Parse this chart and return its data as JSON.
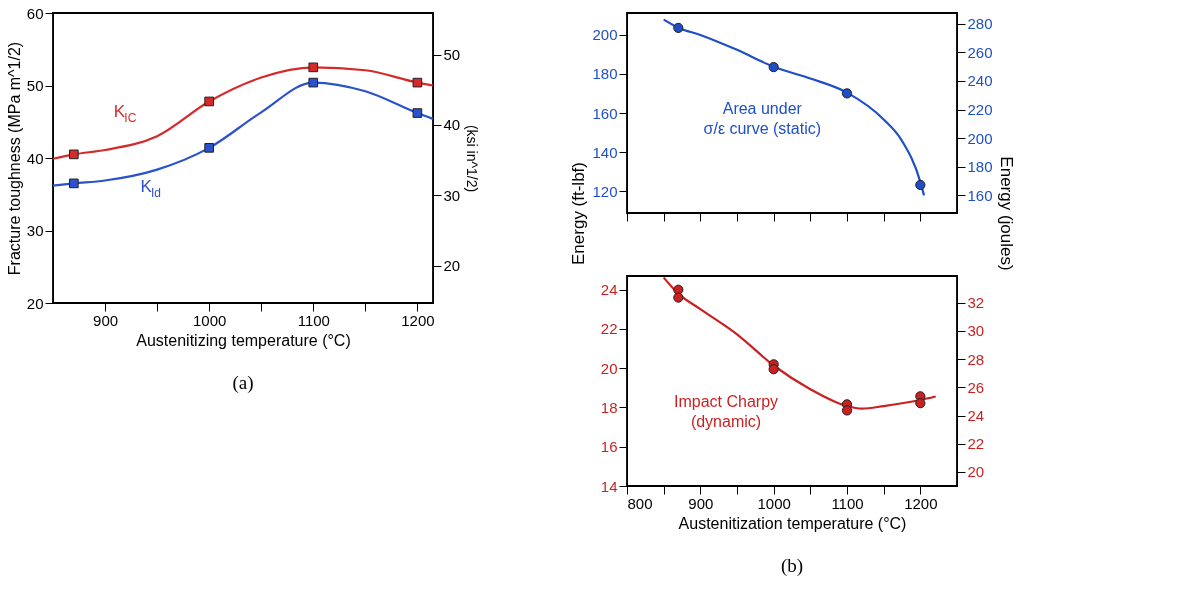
{
  "chart_data": [
    {
      "type": "line",
      "xlabel": "Austenitizing temperature (°C)",
      "ylabel": "Fracture toughness (MPa m^1/2)",
      "y2label": "(ksi in^1/2)",
      "xlim": [
        850,
        1215
      ],
      "xticks": [
        900,
        {
          "value": 950,
          "label": null
        },
        1000,
        {
          "value": 1050,
          "label": null
        },
        1100,
        {
          "value": 1150,
          "label": null
        },
        1200
      ],
      "ylim": [
        20,
        60
      ],
      "yticks": [
        20,
        30,
        40,
        50,
        60
      ],
      "y2lim": [
        14.7,
        55.9
      ],
      "y2ticks": [
        20,
        30,
        40,
        50
      ],
      "grid": false,
      "annotations": [
        "(a)"
      ],
      "series": [
        {
          "color": "#d42a2a",
          "marker": "none",
          "x": [
            850,
            870,
            900,
            950,
            1000,
            1050,
            1100,
            1150,
            1200,
            1215
          ],
          "values": [
            39.9,
            40.5,
            41.1,
            43.0,
            47.8,
            51.1,
            52.5,
            52.1,
            50.4,
            50.0
          ]
        },
        {
          "type": "scatter",
          "name": "K$_{IC}$",
          "color": "#d42a2a",
          "marker": "square",
          "x": [
            870,
            1000,
            1100,
            1200
          ],
          "values": [
            40.5,
            47.8,
            52.5,
            50.4
          ]
        },
        {
          "color": "#2a52cc",
          "marker": "none",
          "x": [
            850,
            870,
            900,
            950,
            1000,
            1050,
            1100,
            1150,
            1200,
            1215
          ],
          "values": [
            36.2,
            36.5,
            36.9,
            38.4,
            41.4,
            46.3,
            50.4,
            49.2,
            46.2,
            45.4
          ]
        },
        {
          "type": "scatter",
          "name": "K$_{Id}$",
          "color": "#2a52cc",
          "marker": "square",
          "x": [
            870,
            1000,
            1100,
            1200
          ],
          "values": [
            36.5,
            41.4,
            50.4,
            46.2
          ]
        }
      ]
    },
    {
      "type": "line",
      "ylabel": "Energy (ft-lbf)",
      "y2label": "Energy (joules)",
      "xlim": [
        800,
        1250
      ],
      "xticks": [
        800,
        {
          "value": 850,
          "label": null
        },
        900,
        {
          "value": 950,
          "label": null
        },
        1000,
        {
          "value": 1050,
          "label": null
        },
        1100,
        {
          "value": 1150,
          "label": null
        },
        1200
      ],
      "tick_labels": "y",
      "ylim": [
        109,
        211
      ],
      "yticks": [
        120,
        140,
        160,
        180,
        200
      ],
      "y2lim": [
        147.7,
        287.5
      ],
      "y2ticks": [
        160,
        180,
        200,
        220,
        240,
        260,
        280
      ],
      "grid": false,
      "series": [
        {
          "color": "#1f4fc8",
          "marker": "none",
          "x": [
            850,
            870,
            900,
            950,
            1000,
            1050,
            1100,
            1150,
            1175,
            1200,
            1205
          ],
          "values": [
            207.6,
            203.5,
            199.8,
            192.2,
            183.6,
            177.6,
            170.4,
            156.7,
            145.8,
            124.9,
            118.0
          ]
        },
        {
          "type": "scatter",
          "name": "Area under\nσ/ε curve (static)",
          "color": "#1f4fc8",
          "marker": "circle",
          "x": [
            870,
            1000,
            1100,
            1200
          ],
          "values": [
            203.4,
            183.4,
            170.0,
            123.3
          ]
        }
      ]
    },
    {
      "type": "line",
      "xlabel": "Austenitization temperature (°C)",
      "xlim": [
        800,
        1250
      ],
      "xticks": [
        800,
        {
          "value": 850,
          "label": null
        },
        900,
        {
          "value": 950,
          "label": null
        },
        1000,
        {
          "value": 1050,
          "label": null
        },
        1100,
        {
          "value": 1150,
          "label": null
        },
        1200
      ],
      "ylim": [
        14,
        24.7
      ],
      "yticks": [
        14,
        16,
        18,
        20,
        22,
        24
      ],
      "y2lim": [
        19.0,
        33.9
      ],
      "y2ticks": [
        20,
        22,
        24,
        26,
        28,
        30,
        32
      ],
      "grid": false,
      "annotations": [
        "(b)"
      ],
      "series": [
        {
          "color": "#cc1f1f",
          "marker": "none",
          "x": [
            850,
            870,
            900,
            950,
            1000,
            1050,
            1100,
            1120,
            1150,
            1200,
            1221
          ],
          "values": [
            24.62,
            23.8,
            23.01,
            21.73,
            20.14,
            18.93,
            18.07,
            17.94,
            18.07,
            18.38,
            18.56
          ]
        },
        {
          "type": "scatter",
          "name": "Impact Charpy\n(dynamic)",
          "color": "#cc1f1f",
          "marker": "circle",
          "x": [
            870,
            870,
            1000,
            1000,
            1100,
            1100,
            1200,
            1200
          ],
          "values": [
            24.0,
            23.6,
            20.2,
            19.95,
            18.16,
            17.85,
            18.57,
            18.22
          ]
        }
      ]
    }
  ]
}
